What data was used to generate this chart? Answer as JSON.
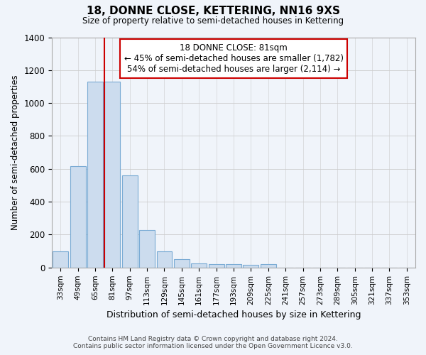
{
  "title": "18, DONNE CLOSE, KETTERING, NN16 9XS",
  "subtitle": "Size of property relative to semi-detached houses in Kettering",
  "xlabel": "Distribution of semi-detached houses by size in Kettering",
  "ylabel": "Number of semi-detached properties",
  "categories": [
    "33sqm",
    "49sqm",
    "65sqm",
    "81sqm",
    "97sqm",
    "113sqm",
    "129sqm",
    "145sqm",
    "161sqm",
    "177sqm",
    "193sqm",
    "209sqm",
    "225sqm",
    "241sqm",
    "257sqm",
    "273sqm",
    "289sqm",
    "305sqm",
    "321sqm",
    "337sqm",
    "353sqm"
  ],
  "values": [
    100,
    615,
    1130,
    1130,
    560,
    230,
    100,
    50,
    25,
    22,
    20,
    15,
    20,
    0,
    0,
    0,
    0,
    0,
    0,
    0,
    0
  ],
  "highlight_index": 3,
  "bar_color": "#ccdcee",
  "bar_edge_color": "#7aabd4",
  "highlight_line_color": "#cc0000",
  "box_text_line1": "18 DONNE CLOSE: 81sqm",
  "box_text_line2": "← 45% of semi-detached houses are smaller (1,782)",
  "box_text_line3": "54% of semi-detached houses are larger (2,114) →",
  "box_edge_color": "#cc0000",
  "ylim": [
    0,
    1400
  ],
  "yticks": [
    0,
    200,
    400,
    600,
    800,
    1000,
    1200,
    1400
  ],
  "footer_line1": "Contains HM Land Registry data © Crown copyright and database right 2024.",
  "footer_line2": "Contains public sector information licensed under the Open Government Licence v3.0.",
  "bg_color": "#f0f4fa",
  "plot_bg_color": "#f0f4fa"
}
